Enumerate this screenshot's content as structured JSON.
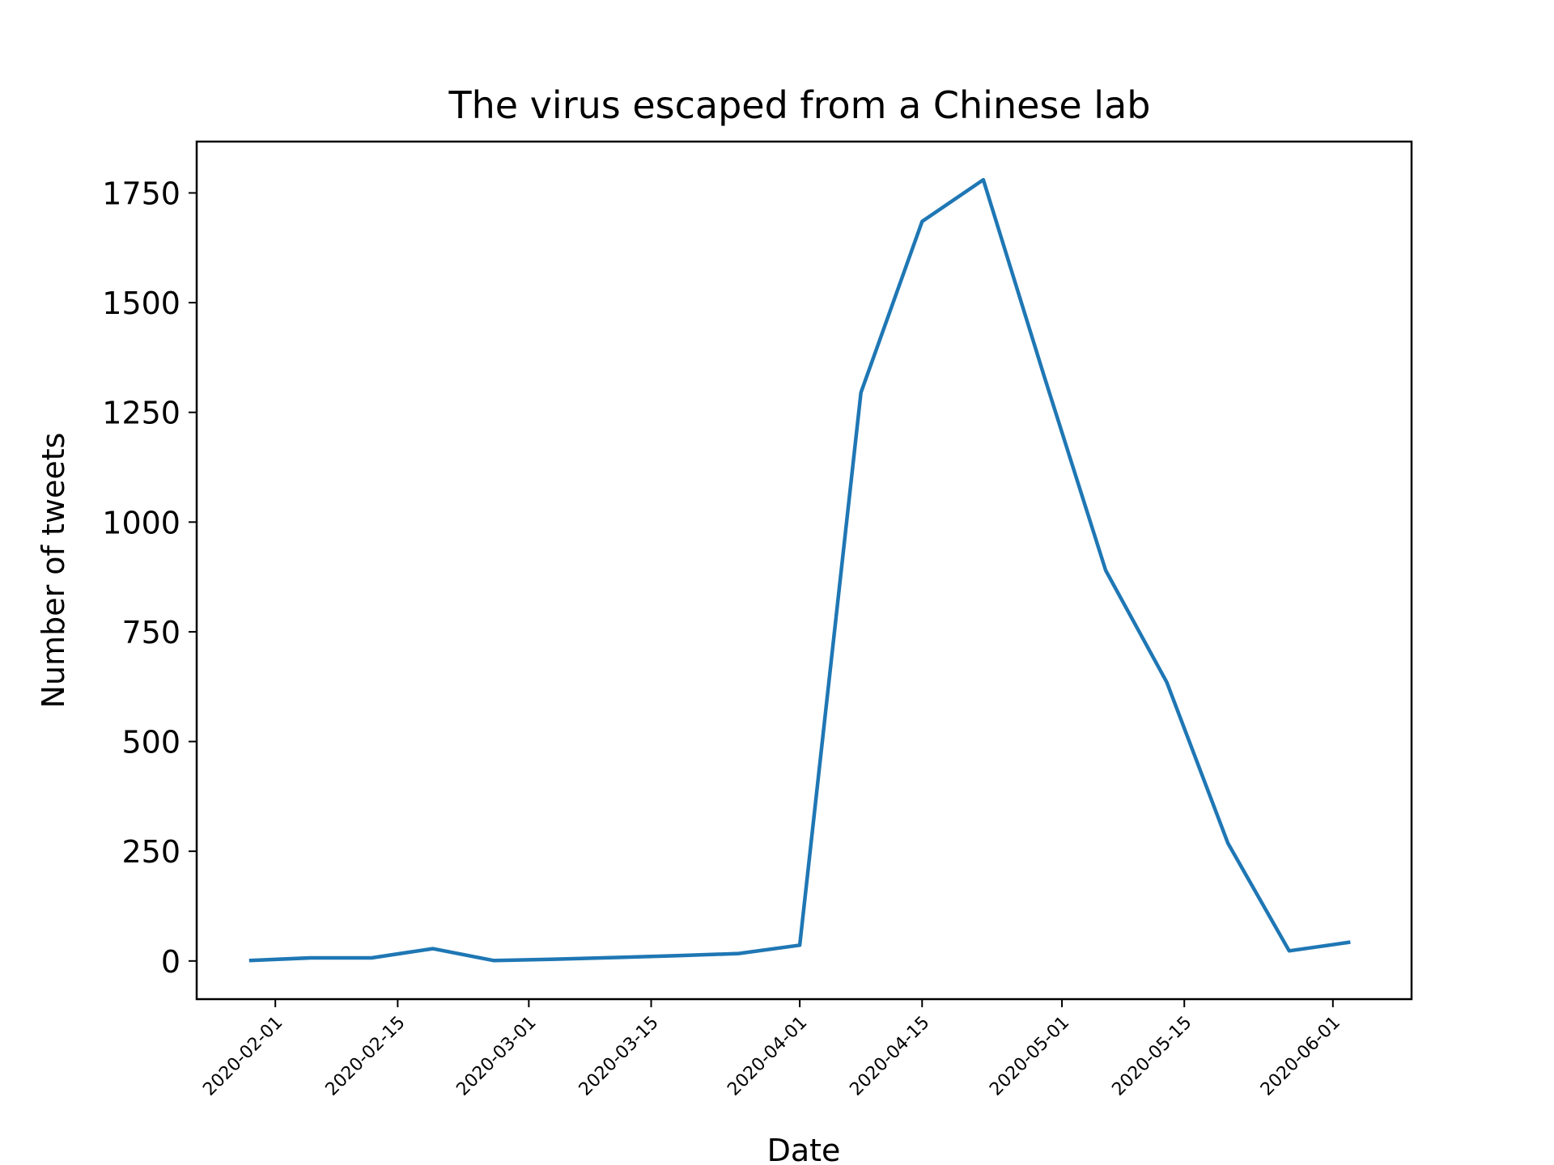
{
  "chart_data": {
    "type": "line",
    "title": "The virus escaped from a Chinese lab",
    "xlabel": "Date",
    "ylabel": "Number of tweets",
    "x": [
      "2020-01-29",
      "2020-02-05",
      "2020-02-12",
      "2020-02-19",
      "2020-02-26",
      "2020-03-04",
      "2020-03-11",
      "2020-03-18",
      "2020-03-25",
      "2020-04-01",
      "2020-04-08",
      "2020-04-15",
      "2020-04-22",
      "2020-04-29",
      "2020-05-06",
      "2020-05-13",
      "2020-05-20",
      "2020-05-27",
      "2020-06-03"
    ],
    "series": [
      {
        "color": "#1f77b4",
        "values": [
          1,
          7,
          7,
          28,
          1,
          4,
          8,
          12,
          17,
          36,
          1295,
          1685,
          1780,
          1330,
          890,
          635,
          268,
          23,
          43
        ]
      }
    ],
    "xticks": [
      "2020-02-01",
      "2020-02-15",
      "2020-03-01",
      "2020-03-15",
      "2020-04-01",
      "2020-04-15",
      "2020-05-01",
      "2020-05-15",
      "2020-06-01"
    ],
    "yticks": [
      "0",
      "250",
      "500",
      "750",
      "1000",
      "1250",
      "1500",
      "1750"
    ],
    "xlim": [
      "2020-01-23",
      "2020-06-10"
    ],
    "ylim": [
      -87,
      1867
    ],
    "grid": false,
    "legend": "none"
  }
}
